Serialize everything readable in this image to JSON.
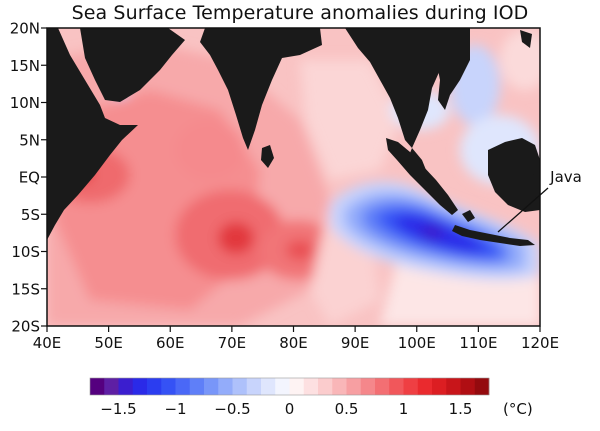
{
  "title": "Sea Surface Temperature anomalies during IOD",
  "map": {
    "region": "Indian Ocean",
    "lon_range": [
      40,
      120
    ],
    "lat_range": [
      -20,
      20
    ],
    "annotation": "Java",
    "land_color": "#1a1a1a",
    "x_ticks": [
      "40E",
      "50E",
      "60E",
      "70E",
      "80E",
      "90E",
      "100E",
      "110E",
      "120E"
    ],
    "y_ticks": [
      "20N",
      "15N",
      "10N",
      "5N",
      "EQ",
      "5S",
      "10S",
      "15S",
      "20S"
    ]
  },
  "colorbar": {
    "min": -1.75,
    "max": 1.75,
    "step": 0.125,
    "labels": [
      "−1.5",
      "−1",
      "−0.5",
      "0",
      "0.5",
      "1",
      "1.5"
    ],
    "unit": "(°C)",
    "colors": [
      "#55007f",
      "#5e1fa4",
      "#3b1ecf",
      "#2a2ae8",
      "#2b3df0",
      "#3552f5",
      "#4a68f7",
      "#5f7ff8",
      "#7896f9",
      "#93acfa",
      "#aec1fb",
      "#c8d4fc",
      "#dfe6fd",
      "#f3f5fe",
      "#fef3f3",
      "#fde0e1",
      "#fbcccd",
      "#f9b6b8",
      "#f79fa2",
      "#f5878b",
      "#f36f73",
      "#f1575b",
      "#ef3f43",
      "#ea2a2e",
      "#dc1e22",
      "#c8151a",
      "#b00e13",
      "#940a0e"
    ]
  }
}
